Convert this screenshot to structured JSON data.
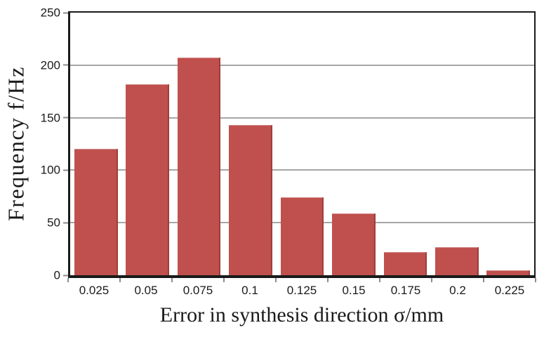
{
  "chart_data": {
    "type": "bar",
    "title": "",
    "xlabel": "Error in synthesis direction σ/mm",
    "ylabel": "Frequency f/Hz",
    "categories": [
      "0.025",
      "0.05",
      "0.075",
      "0.1",
      "0.125",
      "0.15",
      "0.175",
      "0.2",
      "0.225"
    ],
    "values": [
      120,
      182,
      207,
      143,
      74,
      59,
      22,
      27,
      5
    ],
    "ylim": [
      0,
      250
    ],
    "ytick_step": 50,
    "yticks": [
      0,
      50,
      100,
      150,
      200,
      250
    ],
    "grid": "horizontal",
    "legend_position": "none",
    "colors": {
      "bar_fill": "#C0504D",
      "bar_edge_dark": "#9E3E3C",
      "bar_edge_light": "#D28A88",
      "gridline": "#A6A6A6",
      "axis_line": "#1A1A1A",
      "tick_mark": "#8C8C8C",
      "tick_label": "#1A1A1A"
    }
  }
}
